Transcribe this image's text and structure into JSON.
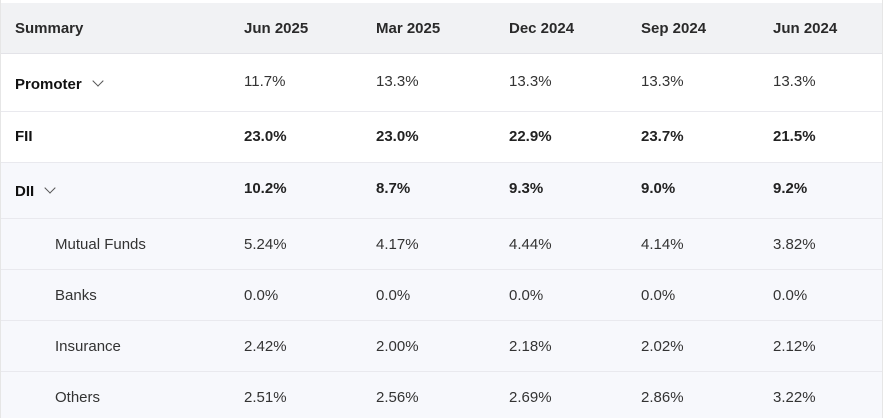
{
  "header": {
    "summary": "Summary",
    "cols": [
      "Jun 2025",
      "Mar 2025",
      "Dec 2024",
      "Sep 2024",
      "Jun 2024"
    ]
  },
  "rows": [
    {
      "label": "Promoter",
      "values": [
        "11.7%",
        "13.3%",
        "13.3%",
        "13.3%",
        "13.3%"
      ]
    },
    {
      "label": "FII",
      "values": [
        "23.0%",
        "23.0%",
        "22.9%",
        "23.7%",
        "21.5%"
      ]
    },
    {
      "label": "DII",
      "values": [
        "10.2%",
        "8.7%",
        "9.3%",
        "9.0%",
        "9.2%"
      ]
    },
    {
      "label": "Mutual Funds",
      "values": [
        "5.24%",
        "4.17%",
        "4.44%",
        "4.14%",
        "3.82%"
      ]
    },
    {
      "label": "Banks",
      "values": [
        "0.0%",
        "0.0%",
        "0.0%",
        "0.0%",
        "0.0%"
      ]
    },
    {
      "label": "Insurance",
      "values": [
        "2.42%",
        "2.00%",
        "2.18%",
        "2.02%",
        "2.12%"
      ]
    },
    {
      "label": "Others",
      "values": [
        "2.51%",
        "2.56%",
        "2.69%",
        "2.86%",
        "3.22%"
      ]
    }
  ],
  "icons": {
    "expand": "chevron-down-icon"
  }
}
